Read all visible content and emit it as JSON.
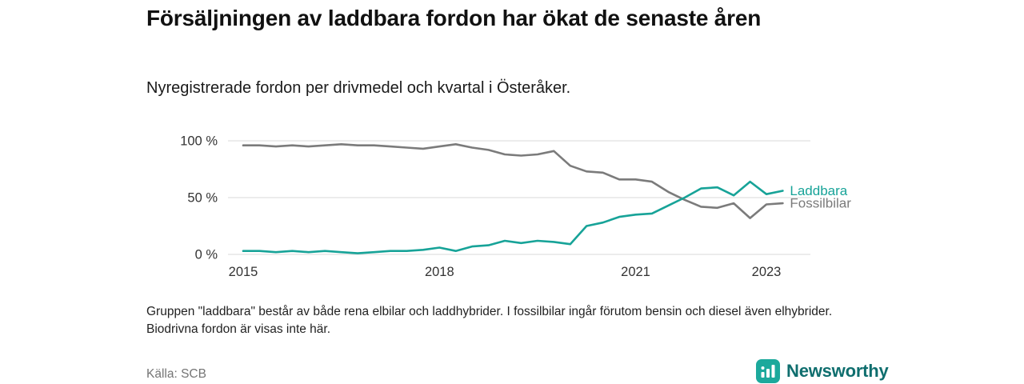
{
  "chart_data": {
    "type": "line",
    "title": "Försäljningen av laddbara fordon har ökat de senaste åren",
    "subtitle": "Nyregistrerade fordon per drivmedel och kvartal i Österåker.",
    "x_unit": "quarter",
    "x": [
      2015.0,
      2015.25,
      2015.5,
      2015.75,
      2016.0,
      2016.25,
      2016.5,
      2016.75,
      2017.0,
      2017.25,
      2017.5,
      2017.75,
      2018.0,
      2018.25,
      2018.5,
      2018.75,
      2019.0,
      2019.25,
      2019.5,
      2019.75,
      2020.0,
      2020.25,
      2020.5,
      2020.75,
      2021.0,
      2021.25,
      2021.5,
      2021.75,
      2022.0,
      2022.25,
      2022.5,
      2022.75,
      2023.0,
      2023.25
    ],
    "series": [
      {
        "name": "Laddbara",
        "color": "#17a398",
        "values": [
          3,
          3,
          2,
          3,
          2,
          3,
          2,
          1,
          2,
          3,
          3,
          4,
          6,
          3,
          7,
          8,
          12,
          10,
          12,
          11,
          9,
          25,
          28,
          33,
          35,
          36,
          43,
          50,
          58,
          59,
          52,
          64,
          53,
          56
        ]
      },
      {
        "name": "Fossilbilar",
        "color": "#7b7b7b",
        "values": [
          96,
          96,
          95,
          96,
          95,
          96,
          97,
          96,
          96,
          95,
          94,
          93,
          95,
          97,
          94,
          92,
          88,
          87,
          88,
          91,
          78,
          73,
          72,
          66,
          66,
          64,
          55,
          48,
          42,
          41,
          45,
          32,
          44,
          45
        ]
      }
    ],
    "ylim": [
      0,
      100
    ],
    "yticks": [
      {
        "value": 100,
        "label": "100 %"
      },
      {
        "value": 50,
        "label": "50 %"
      },
      {
        "value": 0,
        "label": "0 %"
      }
    ],
    "xticks": [
      {
        "value": 2015,
        "label": "2015"
      },
      {
        "value": 2018,
        "label": "2018"
      },
      {
        "value": 2021,
        "label": "2021"
      },
      {
        "value": 2023,
        "label": "2023"
      }
    ],
    "grid": "horizontal-only",
    "legend_position": "line-end-labels"
  },
  "footnote": "Gruppen \"laddbara\" består av både rena elbilar och laddhybrider. I fossilbilar ingår förutom bensin och diesel även elhybrider. Biodrivna fordon är visas inte här.",
  "source": "Källa: SCB",
  "branding": {
    "name": "Newsworthy",
    "icon_color": "#1ca99c",
    "text_color": "#0f6e6e"
  }
}
